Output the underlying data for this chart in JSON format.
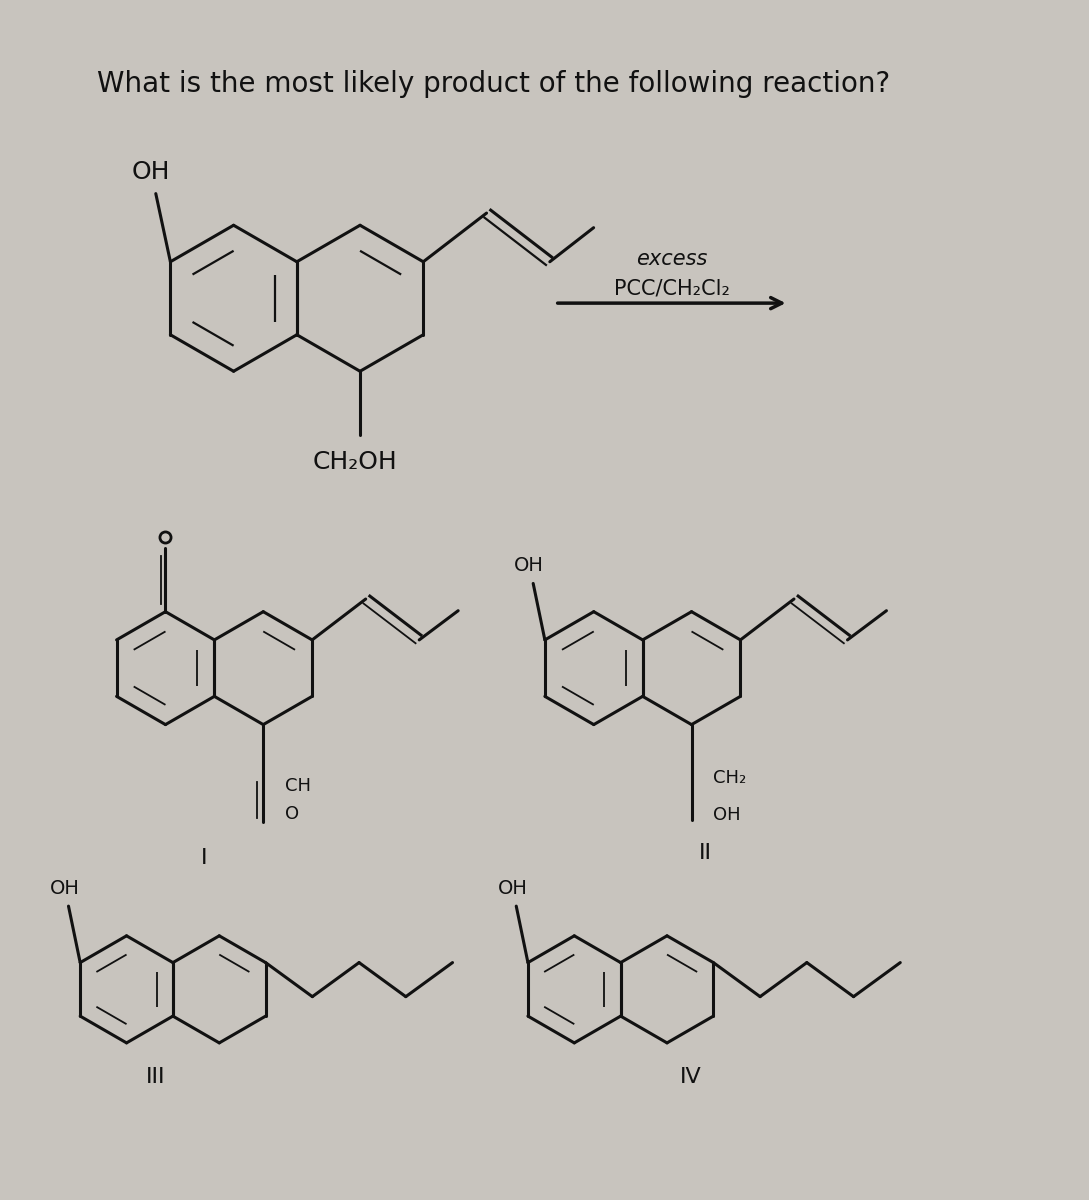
{
  "title": "What is the most likely product of the following reaction?",
  "background_color": "#c8c4be",
  "text_color": "#111111",
  "reagent_line1": "excess",
  "reagent_line2": "PCC/CH₂Cl₂"
}
